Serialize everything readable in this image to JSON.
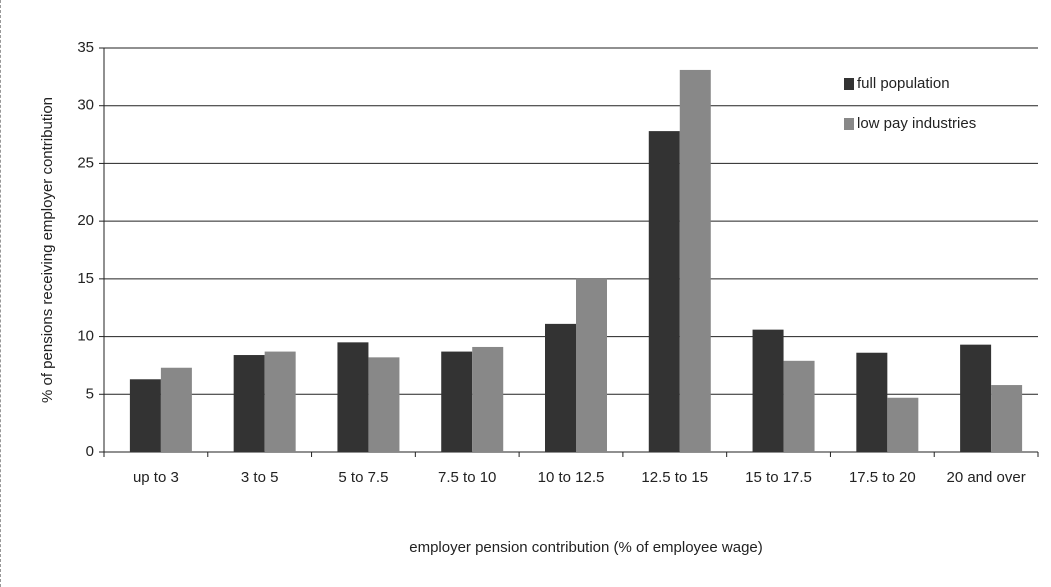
{
  "chart_data": {
    "type": "bar",
    "x_label": "employer pension contribution (% of employee wage)",
    "y_label": "% of pensions receiving employer contribution",
    "categories": [
      "up to 3",
      "3 to 5",
      "5 to 7.5",
      "7.5 to 10",
      "10 to 12.5",
      "12.5 to 15",
      "15 to 17.5",
      "17.5 to 20",
      "20 and over"
    ],
    "series": [
      {
        "name": "full population",
        "color": "#333333",
        "values": [
          6.3,
          8.4,
          9.5,
          8.7,
          11.1,
          27.8,
          10.6,
          8.6,
          9.3
        ]
      },
      {
        "name": "low pay industries",
        "color": "#888888",
        "values": [
          7.3,
          8.7,
          8.2,
          9.1,
          15.0,
          33.1,
          7.9,
          4.7,
          5.8
        ]
      }
    ],
    "ylim": [
      0,
      35
    ],
    "yticks": [
      0,
      5,
      10,
      15,
      20,
      25,
      30,
      35
    ],
    "grid": true,
    "legend": "upper right"
  }
}
